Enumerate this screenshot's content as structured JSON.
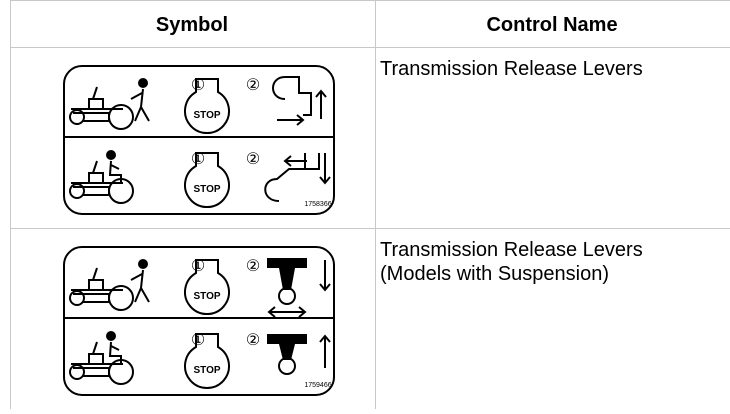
{
  "table": {
    "header": [
      "Symbol",
      "Control Name"
    ],
    "rows": [
      {
        "symbol": {
          "step_labels": [
            "①",
            "②",
            "①",
            "②"
          ],
          "stop_labels": [
            "STOP",
            "STOP"
          ],
          "part_number": "1758366"
        },
        "control_name": [
          "Transmission Release Levers"
        ]
      },
      {
        "symbol": {
          "step_labels": [
            "①",
            "②",
            "①",
            "②"
          ],
          "stop_labels": [
            "STOP",
            "STOP"
          ],
          "part_number": "1759466"
        },
        "control_name": [
          "Transmission Release Levers",
          "(Models with Suspension)"
        ]
      }
    ]
  }
}
